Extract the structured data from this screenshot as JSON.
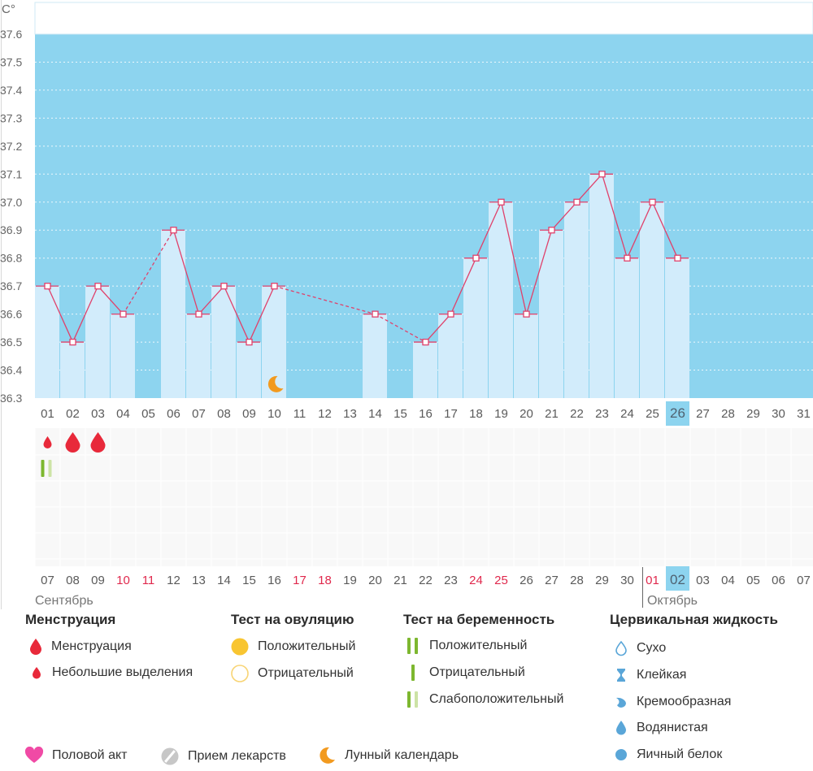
{
  "chart_data": {
    "type": "bar",
    "ylabel": "C°",
    "ylim": [
      36.3,
      37.6
    ],
    "yticks": [
      "36.3",
      "36.4",
      "36.5",
      "36.6",
      "36.7",
      "36.8",
      "36.9",
      "37.0",
      "37.1",
      "37.2",
      "37.3",
      "37.4",
      "37.5",
      "37.6"
    ],
    "categories": [
      "01",
      "02",
      "03",
      "04",
      "05",
      "06",
      "07",
      "08",
      "09",
      "10",
      "11",
      "12",
      "13",
      "14",
      "15",
      "16",
      "17",
      "18",
      "19",
      "20",
      "21",
      "22",
      "23",
      "24",
      "25",
      "26",
      "27",
      "28",
      "29",
      "30",
      "31"
    ],
    "values": [
      36.7,
      36.5,
      36.7,
      36.6,
      null,
      36.9,
      36.6,
      36.7,
      36.5,
      36.7,
      null,
      null,
      null,
      36.6,
      null,
      36.5,
      36.6,
      36.8,
      37.0,
      36.6,
      36.9,
      37.0,
      37.1,
      36.8,
      37.0,
      36.8,
      null,
      null,
      null,
      null,
      null
    ],
    "highlight_day": "26",
    "moon_day": "10",
    "colors": {
      "background": "#8dd4ef",
      "bar": "#d2ecfb",
      "line": "#e0416b",
      "header": "#ffffff",
      "highlight": "#8dd4ef",
      "moon": "#f29a1f",
      "menstruation": "#e8293a",
      "test_dark": "#7db72f",
      "test_light": "#cde3a6"
    }
  },
  "calendar": {
    "dates": [
      "07",
      "08",
      "09",
      "10",
      "11",
      "12",
      "13",
      "14",
      "15",
      "16",
      "17",
      "18",
      "19",
      "20",
      "21",
      "22",
      "23",
      "24",
      "25",
      "26",
      "27",
      "28",
      "29",
      "30",
      "01",
      "02",
      "03",
      "04",
      "05",
      "06",
      "07"
    ],
    "red_dates": [
      3,
      4,
      10,
      11,
      17,
      18,
      24
    ],
    "highlight_index": 25,
    "month_left": "Сентябрь",
    "month_right": "Октябрь"
  },
  "events": {
    "menstruation": [
      {
        "day_index": 0,
        "kind": "small"
      },
      {
        "day_index": 1,
        "kind": "large"
      },
      {
        "day_index": 2,
        "kind": "large"
      }
    ],
    "pregnancy_test": [
      {
        "day_index": 0,
        "kind": "weak-positive"
      }
    ]
  },
  "legend": {
    "menstruation": {
      "title": "Менструация",
      "items": [
        "Менструация",
        "Небольшие выделения"
      ]
    },
    "ovulation_test": {
      "title": "Тест на овуляцию",
      "items": [
        "Положительный",
        "Отрицательный"
      ]
    },
    "pregnancy_test": {
      "title": "Тест на беременность",
      "items": [
        "Положительный",
        "Отрицательный",
        "Слабоположительный"
      ]
    },
    "cervical": {
      "title": "Цервикальная жидкость",
      "items": [
        "Сухо",
        "Клейкая",
        "Кремообразная",
        "Водянистая",
        "Яичный белок"
      ]
    },
    "bottom": [
      "Половой акт",
      "Прием лекарств",
      "Лунный календарь"
    ]
  }
}
